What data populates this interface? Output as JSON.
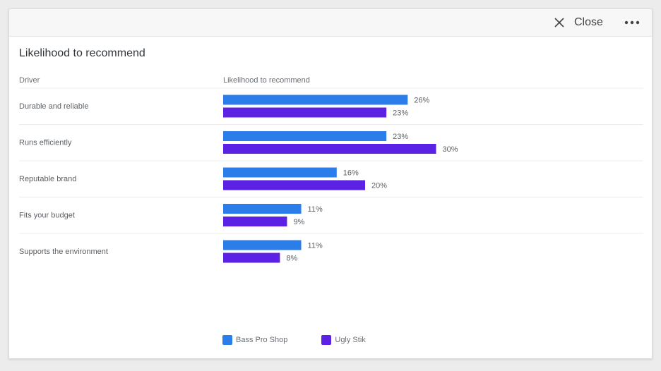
{
  "header": {
    "close_label": "Close"
  },
  "panel": {
    "title": "Likelihood to recommend",
    "col_driver": "Driver",
    "col_metric": "Likelihood to recommend"
  },
  "colors": {
    "series_1": "#2b7de9",
    "series_2": "#5b22e6",
    "divider": "#ececec",
    "label_text": "#5c6166"
  },
  "chart_data": {
    "type": "bar",
    "orientation": "horizontal",
    "categories": [
      "Durable and reliable",
      "Runs efficiently",
      "Reputable brand",
      "Fits your budget",
      "Supports the environment"
    ],
    "series": [
      {
        "name": "Bass Pro Shop",
        "values": [
          26,
          23,
          16,
          11,
          11
        ]
      },
      {
        "name": "Ugly Stik",
        "values": [
          23,
          30,
          20,
          9,
          8
        ]
      }
    ],
    "value_suffix": "%",
    "xlim": [
      0,
      30
    ],
    "legend_position": "bottom"
  }
}
